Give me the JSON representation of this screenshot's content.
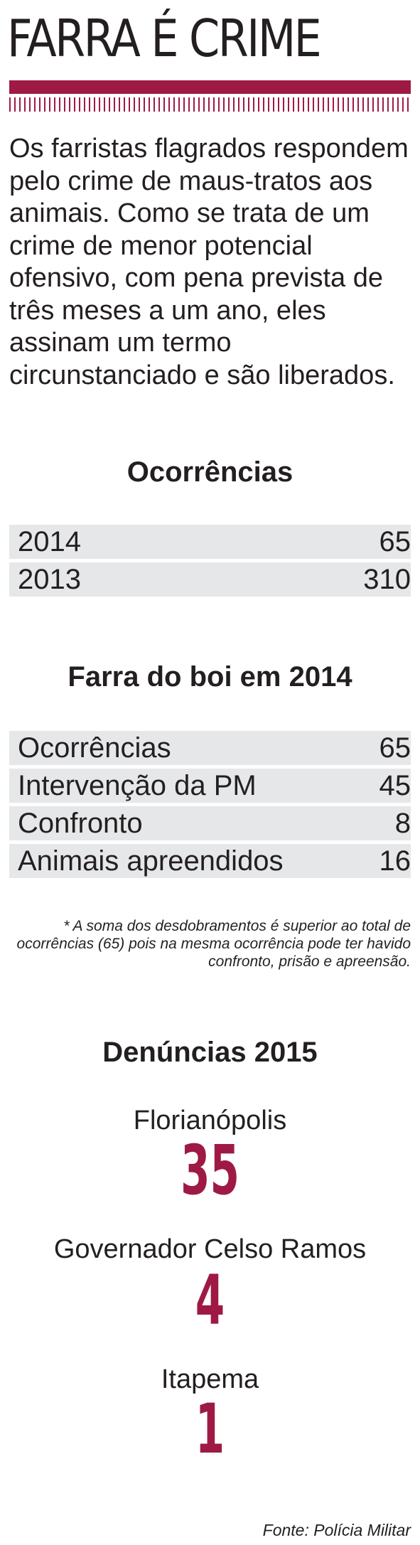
{
  "title": "FARRA É CRIME",
  "intro": "Os farristas flagrados respondem pelo crime de maus-tratos aos animais. Como se trata de um crime de menor potencial ofensivo, com pena prevista de três meses a um ano, eles assinam um termo circunstanciado e são liberados.",
  "ocorrencias": {
    "title": "Ocorrências",
    "rows": [
      {
        "label": "2014",
        "value": "65"
      },
      {
        "label": "2013",
        "value": "310"
      }
    ]
  },
  "farra2014": {
    "title": "Farra do boi em 2014",
    "rows": [
      {
        "label": "Ocorrências",
        "value": "65"
      },
      {
        "label": "Intervenção da PM",
        "value": "45"
      },
      {
        "label": "Confronto",
        "value": "8"
      },
      {
        "label": "Animais apreendidos",
        "value": "16"
      }
    ]
  },
  "note": "* A soma dos desdobramentos é superior ao total de ocorrências (65) pois na mesma ocorrência pode ter havido confronto, prisão e apreensão.",
  "denuncias": {
    "title": "Denúncias 2015",
    "items": [
      {
        "city": "Florianópolis",
        "value": "35"
      },
      {
        "city": "Governador Celso Ramos",
        "value": "4"
      },
      {
        "city": "Itapema",
        "value": "1"
      }
    ]
  },
  "source": "Fonte: Polícia Militar",
  "colors": {
    "accent": "#9e1a44",
    "row_bg": "#e6e7e8",
    "text": "#231f20"
  }
}
